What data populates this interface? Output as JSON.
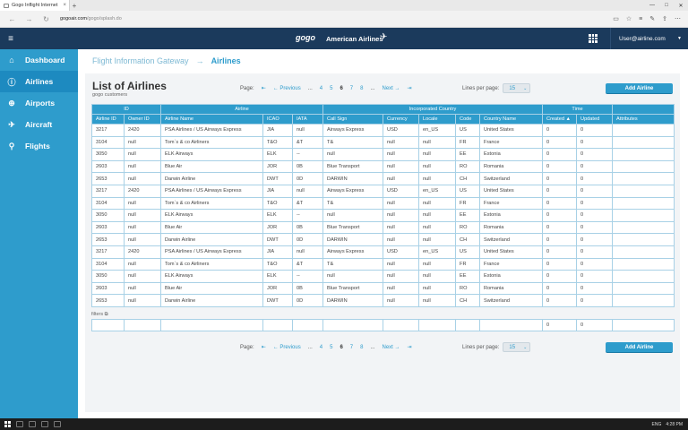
{
  "browser": {
    "tab_title": "Gogo Inflight Internet",
    "tab_close": "×",
    "new_tab": "+",
    "url_host": "gogoair.com",
    "url_path": "/gogo/splash.do",
    "back": "←",
    "forward": "→",
    "refresh": "↻",
    "win_min": "—",
    "win_max": "□",
    "win_close": "✕",
    "tool_icons": [
      "▭",
      "☆",
      "≡",
      "✎",
      "⇪",
      "⋯"
    ]
  },
  "header": {
    "menu_icon": "≡",
    "brand_gogo": "gogo",
    "brand_airline": "American Airlines",
    "brand_eagle": "✈",
    "user": "User@airline.com",
    "user_chevron": "▼"
  },
  "sidebar": {
    "items": [
      {
        "label": "Dashboard",
        "icon": "⌂",
        "active": false
      },
      {
        "label": "Airlines",
        "icon": "ⓘ",
        "active": true
      },
      {
        "label": "Airports",
        "icon": "⊕",
        "active": false
      },
      {
        "label": "Aircraft",
        "icon": "✈",
        "active": false
      },
      {
        "label": "Flights",
        "icon": "⚲",
        "active": false
      }
    ]
  },
  "breadcrumb": {
    "parent": "Flight Information Gateway",
    "arrow": "→",
    "current": "Airlines"
  },
  "page": {
    "title": "List of Airlines",
    "subtitle": "gogo customers",
    "filters_label": "filters",
    "filters_icon": "⧉"
  },
  "pagination": {
    "label": "Page:",
    "first": "⇤",
    "previous": "← Previous",
    "ellipsis": "...",
    "pages": [
      "4",
      "5",
      "6",
      "7",
      "8"
    ],
    "current_page": "6",
    "next": "Next →",
    "last": "⇥",
    "lines_label": "Lines per page:",
    "lines_value": "15",
    "lines_arrow": "⌄",
    "add_label": "Add Airline"
  },
  "table": {
    "groups": [
      "ID",
      "Airline",
      "Incorporated Country",
      "Time",
      ""
    ],
    "columns": [
      "Airline ID",
      "Owner ID",
      "Airline Name",
      "ICAO",
      "IATA",
      "Call Sign",
      "Currency",
      "Locale",
      "Code",
      "Country Name",
      "Created ▲",
      "Updated",
      "Attributes"
    ],
    "rows": [
      [
        "3217",
        "2420",
        "PSA Airlines / US Airways Express",
        "JIA",
        "null",
        "Airways Express",
        "USD",
        "en_US",
        "US",
        "United States",
        "0",
        "0",
        ""
      ],
      [
        "3104",
        "null",
        "Tom`s & co Airliners",
        "T&O",
        "&T",
        "T&",
        "null",
        "null",
        "FR",
        "France",
        "0",
        "0",
        ""
      ],
      [
        "3050",
        "null",
        "ELK Airways",
        "ELK",
        "--",
        "null",
        "null",
        "null",
        "EE",
        "Estonia",
        "0",
        "0",
        ""
      ],
      [
        "2603",
        "null",
        "Blue Air",
        "JOR",
        "0B",
        "Blue Transport",
        "null",
        "null",
        "RO",
        "Romania",
        "0",
        "0",
        ""
      ],
      [
        "2653",
        "null",
        "Darwin Airline",
        "DWT",
        "0D",
        "DARWIN",
        "null",
        "null",
        "CH",
        "Switzerland",
        "0",
        "0",
        ""
      ],
      [
        "3217",
        "2420",
        "PSA Airlines / US Airways Express",
        "JIA",
        "null",
        "Airways Express",
        "USD",
        "en_US",
        "US",
        "United States",
        "0",
        "0",
        ""
      ],
      [
        "3104",
        "null",
        "Tom`s & co Airliners",
        "T&O",
        "&T",
        "T&",
        "null",
        "null",
        "FR",
        "France",
        "0",
        "0",
        ""
      ],
      [
        "3050",
        "null",
        "ELK Airways",
        "ELK",
        "--",
        "null",
        "null",
        "null",
        "EE",
        "Estonia",
        "0",
        "0",
        ""
      ],
      [
        "2603",
        "null",
        "Blue Air",
        "JOR",
        "0B",
        "Blue Transport",
        "null",
        "null",
        "RO",
        "Romania",
        "0",
        "0",
        ""
      ],
      [
        "2653",
        "null",
        "Darwin Airline",
        "DWT",
        "0D",
        "DARWIN",
        "null",
        "null",
        "CH",
        "Switzerland",
        "0",
        "0",
        ""
      ],
      [
        "3217",
        "2420",
        "PSA Airlines / US Airways Express",
        "JIA",
        "null",
        "Airways Express",
        "USD",
        "en_US",
        "US",
        "United States",
        "0",
        "0",
        ""
      ],
      [
        "3104",
        "null",
        "Tom`s & co Airliners",
        "T&O",
        "&T",
        "T&",
        "null",
        "null",
        "FR",
        "France",
        "0",
        "0",
        ""
      ],
      [
        "3050",
        "null",
        "ELK Airways",
        "ELK",
        "--",
        "null",
        "null",
        "null",
        "EE",
        "Estonia",
        "0",
        "0",
        ""
      ],
      [
        "2603",
        "null",
        "Blue Air",
        "JOR",
        "0B",
        "Blue Transport",
        "null",
        "null",
        "RO",
        "Romania",
        "0",
        "0",
        ""
      ],
      [
        "2653",
        "null",
        "Darwin Airline",
        "DWT",
        "0D",
        "DARWIN",
        "null",
        "null",
        "CH",
        "Switzerland",
        "0",
        "0",
        ""
      ]
    ],
    "filter_row": [
      "",
      "",
      "",
      "",
      "",
      "",
      "",
      "",
      "",
      "",
      "0",
      "0",
      ""
    ]
  },
  "taskbar": {
    "tray_lang": "ENG",
    "tray_time": "4:28 PM"
  },
  "colors": {
    "accent": "#2e9ccc",
    "header_bg": "#1b3a5c",
    "sidebar_bg": "#2e9ccc"
  }
}
